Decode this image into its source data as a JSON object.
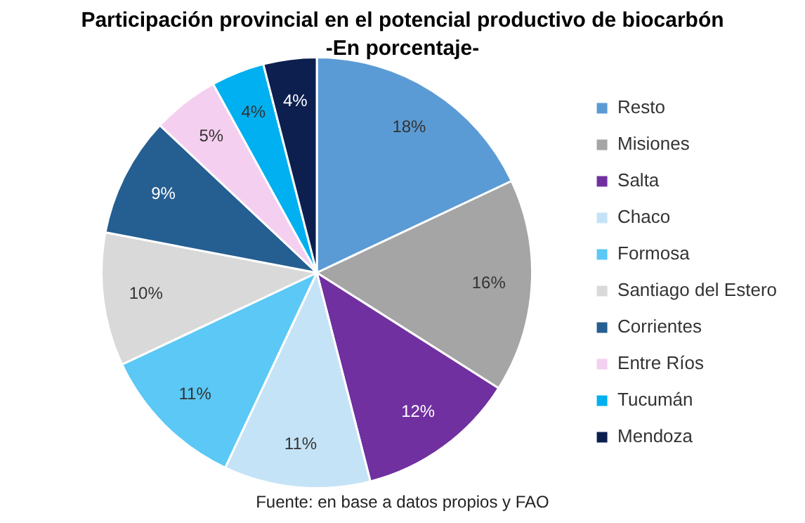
{
  "chart_data": {
    "type": "pie",
    "title": "Participación provincial en el potencial productivo de biocarbón",
    "subtitle": "-En porcentaje-",
    "categories": [
      "Resto",
      "Misiones",
      "Salta",
      "Chaco",
      "Formosa",
      "Santiago del Estero",
      "Corrientes",
      "Entre Ríos",
      "Tucumán",
      "Mendoza"
    ],
    "values": [
      18,
      16,
      12,
      11,
      11,
      10,
      9,
      5,
      4,
      4
    ],
    "value_labels": [
      "18%",
      "16%",
      "12%",
      "11%",
      "11%",
      "10%",
      "9%",
      "5%",
      "4%",
      "4%"
    ],
    "colors": [
      "#5b9bd5",
      "#a5a5a5",
      "#7030a0",
      "#c5e3f6",
      "#5bc8f5",
      "#d9d9d9",
      "#255e91",
      "#f4cff0",
      "#00b0f0",
      "#0c1f4f"
    ],
    "legend": "right",
    "annotations": [
      "Fuente: en base a datos propios y FAO"
    ]
  }
}
